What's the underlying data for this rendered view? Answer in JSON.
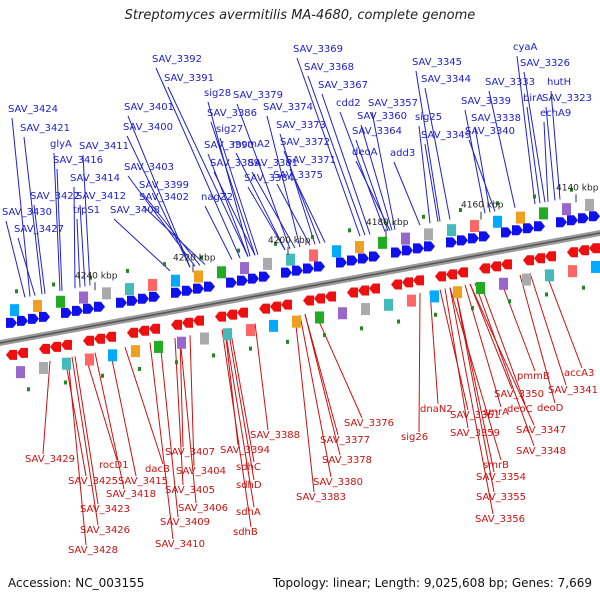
{
  "title": "Streptomyces avermitilis MA-4680, complete genome",
  "footer": {
    "accession": "Accession: NC_003155",
    "topology": "Topology: linear; Length: 9,025,608 bp; Genes: 7,669"
  },
  "colors": {
    "top_label": "#2020cc",
    "bottom_label": "#cc1010",
    "forward_arrow": "#1010ee",
    "reverse_arrow": "#ee1010",
    "axis": "#888888"
  },
  "scale_ticks": [
    {
      "label": "4140 kbp"
    },
    {
      "label": "4160 kbp"
    },
    {
      "label": "4180 kbp"
    },
    {
      "label": "4200 kbp"
    },
    {
      "label": "4220 kbp"
    },
    {
      "label": "4240 kbp"
    }
  ],
  "top_labels": [
    "SAV_3369",
    "SAV_3368",
    "SAV_3367",
    "SAV_3392",
    "SAV_3391",
    "cdd2",
    "SAV_3345",
    "SAV_3344",
    "cyaA",
    "SAV_3326",
    "hutH",
    "SAV_3333",
    "birA",
    "SAV_3323",
    "echA9",
    "SAV_3339",
    "SAV_3338",
    "SAV_3340",
    "SAV_3424",
    "SAV_3421",
    "glyA",
    "SAV_3416",
    "SAV_3411",
    "SAV_3414",
    "SAV_3422",
    "SAV_3412",
    "SAV_3430",
    "SAV_3427",
    "trpS1",
    "SAV_3401",
    "SAV_3400",
    "SAV_3403",
    "SAV_3399",
    "SAV_3402",
    "SAV_3408",
    "sig28",
    "SAV_3386",
    "sig27",
    "SAV_3390",
    "SAV_3389",
    "nagZ2",
    "SAV_3379",
    "SAV_3374",
    "mcmA2",
    "SAV_3381",
    "SAV_3384",
    "SAV_3373",
    "SAV_3372",
    "SAV_3371",
    "SAV_3375",
    "SAV_3357",
    "SAV_3360",
    "SAV_3364",
    "deoA",
    "add3",
    "sig25",
    "SAV_3349"
  ],
  "bottom_labels": [
    "SAV_3429",
    "SAV_3425",
    "rocD1",
    "SAV_3423",
    "SAV_3415",
    "dacB",
    "SAV_3418",
    "SAV_3426",
    "SAV_3428",
    "SAV_3407",
    "SAV_3404",
    "SAV_3394",
    "sdhC",
    "SAV_3405",
    "sdhD",
    "SAV_3406",
    "SAV_3409",
    "sdhA",
    "SAV_3410",
    "sdhB",
    "SAV_3388",
    "SAV_3377",
    "SAV_3378",
    "SAV_3380",
    "SAV_3383",
    "SAV_3376",
    "sig26",
    "dnaN2",
    "SAV_3361",
    "SAV_3359",
    "smrA",
    "SAV_3350",
    "deoC",
    "pmmB",
    "SAV_3341",
    "deoD",
    "accA3",
    "SAV_3347",
    "SAV_3348",
    "smrB",
    "SAV_3354",
    "SAV_3355",
    "SAV_3356"
  ]
}
